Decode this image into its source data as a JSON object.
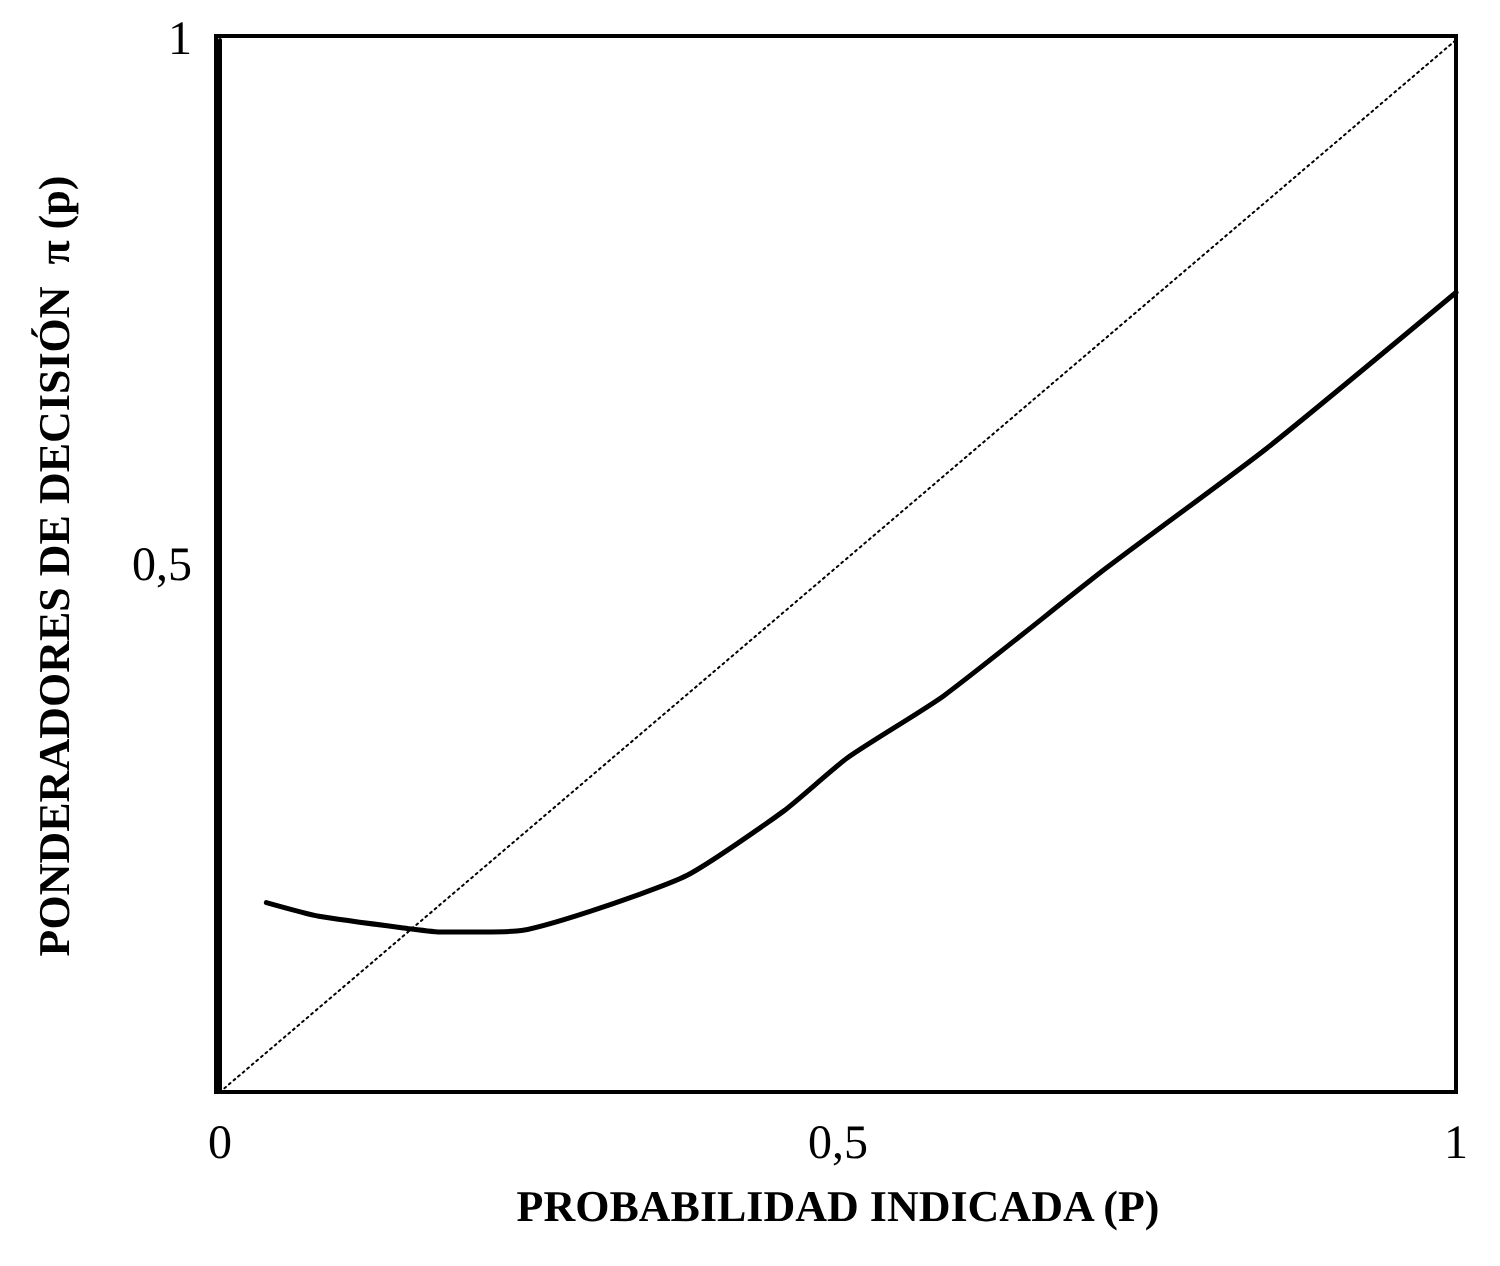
{
  "chart_data": {
    "type": "line",
    "xlabel": "PROBABILIDAD INDICADA (P)",
    "ylabel": "PONDERADORES DE DECISIÓN  π (p)",
    "xlim": [
      0,
      1
    ],
    "ylim": [
      0,
      1
    ],
    "xticks": [
      0,
      {
        "value": 0.5,
        "label": "0,5"
      },
      1
    ],
    "yticks": [
      {
        "value": 0.5,
        "label": "0,5"
      },
      1
    ],
    "grid": false,
    "marker": "none",
    "series": [
      {
        "color": "#000000",
        "line_style": "solid",
        "x": [
          0.0375,
          0.08,
          0.155,
          0.18,
          0.24,
          0.3,
          0.378,
          0.456,
          0.508,
          0.586,
          0.717,
          0.847,
          1.0
        ],
        "values": [
          0.18,
          0.167,
          0.155,
          0.152,
          0.153,
          0.172,
          0.206,
          0.267,
          0.318,
          0.377,
          0.498,
          0.612,
          0.76
        ]
      },
      {
        "color": "#000000",
        "line_style": "dotted",
        "x": [
          0,
          1
        ],
        "values": [
          0,
          1
        ]
      }
    ]
  }
}
